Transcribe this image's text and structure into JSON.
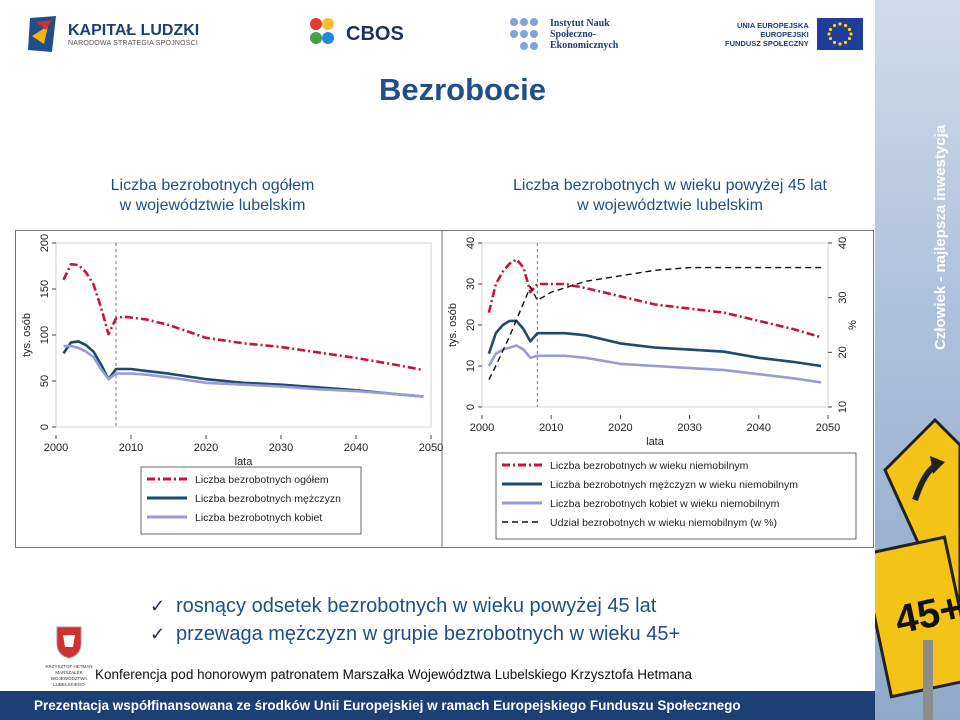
{
  "logos": {
    "kapital_main": "KAPITAŁ LUDZKI",
    "kapital_sub": "NARODOWA STRATEGIA SPÓJNOŚCI",
    "cbos": "CBOS",
    "isp": [
      "Instytut Nauk",
      "Społeczno-",
      "Ekonomicznych"
    ],
    "ue": [
      "UNIA EUROPEJSKA",
      "EUROPEJSKI",
      "FUNDUSZ SPOŁECZNY"
    ],
    "herb": [
      "KRZYSZTOF HETMAN",
      "MARSZAŁEK",
      "WOJEWÓDZTWA LUBELSKIEGO"
    ]
  },
  "slogan": "Człowiek - najlepsza inwestycja",
  "sign_text": "45+",
  "title": "Bezrobocie",
  "left_caption": [
    "Liczba bezrobotnych ogółem",
    "w województwie lubelskim"
  ],
  "right_caption": [
    "Liczba bezrobotnych w wieku powyżej 45 lat",
    "w województwie lubelskim"
  ],
  "bullets": [
    "rosnący odsetek bezrobotnych w wieku powyżej 45 lat",
    "przewaga mężczyzn w grupie bezrobotnych w wieku 45+"
  ],
  "conference": "Konferencja pod honorowym patronatem Marszałka Województwa Lubelskiego Krzysztofa Hetmana",
  "footer": "Prezentacja współfinansowana ze środków Unii Europejskiej w ramach Europejskiego Funduszu Społecznego",
  "colors": {
    "title": "#1f4e8a",
    "total": "#c8143c",
    "men": "#1e4a6e",
    "women": "#9a9ad8",
    "share": "#111111",
    "footer_bg": "#1c3f75"
  },
  "chart_data": [
    {
      "type": "line",
      "xlabel": "lata",
      "ylabel": "tys. osób",
      "xlim": [
        2000,
        2050
      ],
      "ylim": [
        0,
        200
      ],
      "xticks": [
        2000,
        2010,
        2020,
        2030,
        2040,
        2050
      ],
      "yticks": [
        0,
        50,
        100,
        150,
        200
      ],
      "grid": false,
      "forecast_start": 2008,
      "series": [
        {
          "name": "Liczba bezrobotnych ogółem",
          "color": "#c8143c",
          "style": "dash-dot",
          "x": [
            2001,
            2002,
            2003,
            2004,
            2005,
            2006,
            2007,
            2008,
            2009,
            2010,
            2012,
            2015,
            2020,
            2025,
            2030,
            2035,
            2040,
            2045,
            2049
          ],
          "y": [
            160,
            177,
            176,
            168,
            155,
            130,
            101,
            118,
            120,
            119,
            117,
            111,
            97,
            91,
            87,
            81,
            75,
            68,
            62
          ]
        },
        {
          "name": "Liczba bezrobotnych mężczyzn",
          "color": "#1e4a6e",
          "style": "solid",
          "x": [
            2001,
            2002,
            2003,
            2004,
            2005,
            2006,
            2007,
            2008,
            2009,
            2010,
            2012,
            2015,
            2020,
            2025,
            2030,
            2035,
            2040,
            2045,
            2049
          ],
          "y": [
            80,
            92,
            93,
            89,
            82,
            68,
            52,
            63,
            63,
            63,
            61,
            58,
            52,
            48,
            46,
            43,
            40,
            36,
            33
          ]
        },
        {
          "name": "Liczba bezrobotnych kobiet",
          "color": "#9a9ad8",
          "style": "solid",
          "x": [
            2001,
            2002,
            2003,
            2004,
            2005,
            2006,
            2007,
            2008,
            2009,
            2010,
            2012,
            2015,
            2020,
            2025,
            2030,
            2035,
            2040,
            2045,
            2049
          ],
          "y": [
            88,
            88,
            86,
            82,
            76,
            63,
            52,
            58,
            58,
            58,
            57,
            54,
            48,
            46,
            44,
            41,
            39,
            36,
            33
          ]
        }
      ]
    },
    {
      "type": "line",
      "xlabel": "lata",
      "ylabel": "tys. osób",
      "y2label": "%",
      "xlim": [
        2000,
        2050
      ],
      "ylim": [
        0,
        40
      ],
      "y2lim": [
        10,
        40
      ],
      "xticks": [
        2000,
        2010,
        2020,
        2030,
        2040,
        2050
      ],
      "yticks": [
        0,
        10,
        20,
        30,
        40
      ],
      "y2ticks": [
        10,
        20,
        30,
        40
      ],
      "grid": false,
      "forecast_start": 2008,
      "series": [
        {
          "name": "Liczba bezrobotnych w wieku niemobilnym",
          "color": "#c8143c",
          "style": "dash-dot",
          "axis": "left",
          "x": [
            2001,
            2002,
            2003,
            2004,
            2005,
            2006,
            2007,
            2008,
            2009,
            2010,
            2012,
            2015,
            2020,
            2025,
            2030,
            2035,
            2040,
            2045,
            2049
          ],
          "y": [
            23,
            30,
            33,
            35,
            36,
            34,
            28,
            30,
            30,
            30,
            30,
            29,
            27,
            25,
            24,
            23,
            21,
            19,
            17
          ]
        },
        {
          "name": "Liczba bezrobotnych mężczyzn w wieku niemobilnym",
          "color": "#1e4a6e",
          "style": "solid",
          "axis": "left",
          "x": [
            2001,
            2002,
            2003,
            2004,
            2005,
            2006,
            2007,
            2008,
            2009,
            2010,
            2012,
            2015,
            2020,
            2025,
            2030,
            2035,
            2040,
            2045,
            2049
          ],
          "y": [
            13,
            18,
            20,
            21,
            21,
            19,
            16,
            18,
            18,
            18,
            18,
            17.5,
            15.5,
            14.5,
            14,
            13.5,
            12,
            11,
            10
          ]
        },
        {
          "name": "Liczba bezrobotnych kobiet w wieku niemobilnym",
          "color": "#9a9ad8",
          "style": "solid",
          "axis": "left",
          "x": [
            2001,
            2002,
            2003,
            2004,
            2005,
            2006,
            2007,
            2008,
            2009,
            2010,
            2012,
            2015,
            2020,
            2025,
            2030,
            2035,
            2040,
            2045,
            2049
          ],
          "y": [
            10,
            13,
            14,
            14.5,
            15,
            14,
            12,
            12.5,
            12.5,
            12.5,
            12.5,
            12,
            10.5,
            10,
            9.5,
            9,
            8,
            7,
            6
          ]
        },
        {
          "name": "Udział bezrobotnych w wieku niemobilnym (w %)",
          "color": "#111111",
          "style": "dashed",
          "axis": "right",
          "x": [
            2001,
            2002,
            2004,
            2006,
            2007,
            2008,
            2010,
            2015,
            2020,
            2025,
            2030,
            2035,
            2040,
            2045,
            2049
          ],
          "y": [
            15,
            17.5,
            23,
            29,
            32,
            29.5,
            31,
            33,
            34,
            35,
            35.5,
            35.5,
            35.5,
            35.5,
            35.5
          ]
        }
      ]
    }
  ]
}
